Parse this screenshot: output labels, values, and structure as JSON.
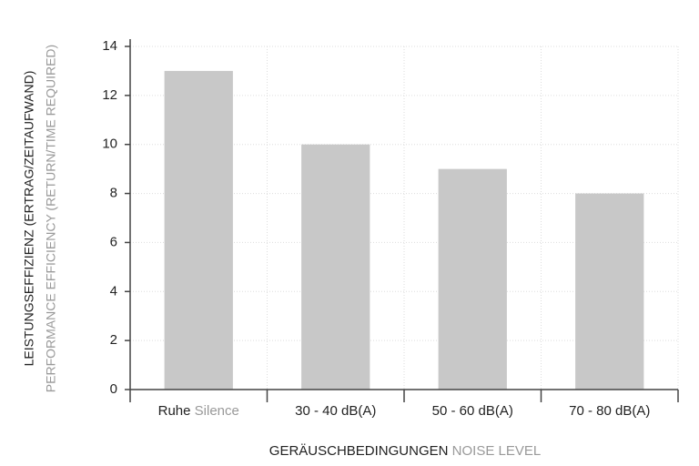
{
  "chart_data": {
    "type": "bar",
    "categories": [
      "Ruhe",
      "30 - 40 dB(A)",
      "50 - 60 dB(A)",
      "70 - 80 dB(A)"
    ],
    "category_translations": [
      "Silence",
      null,
      null,
      null
    ],
    "values": [
      13,
      10,
      9,
      8
    ],
    "color": "#c8c8c8",
    "ylabel": "LEISTUNGSEFFIZIENZ (ERTRAG/ZEITAUFWAND)",
    "ylabel_translation": "PERFORMANCE EFFICIENCY (RETURN/TIME REQUIRED)",
    "xlabel": "GERÄUSCHBEDINGUNGEN",
    "xlabel_translation": "NOISE LEVEL",
    "ylim": [
      0,
      14
    ],
    "yticks": [
      0,
      2,
      4,
      6,
      8,
      10,
      12,
      14
    ],
    "grid": true
  }
}
